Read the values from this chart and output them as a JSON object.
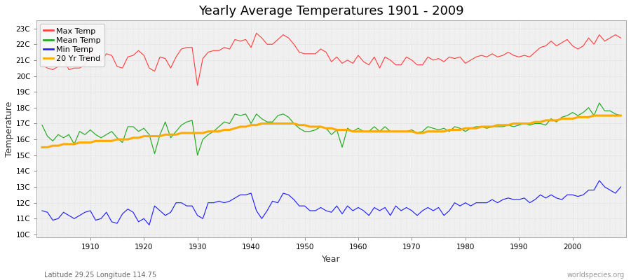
{
  "title": "Yearly Average Temperatures 1901 - 2009",
  "xlabel": "Year",
  "ylabel": "Temperature",
  "x_start": 1901,
  "x_end": 2009,
  "yticks": [
    10,
    11,
    12,
    13,
    14,
    15,
    16,
    17,
    18,
    19,
    20,
    21,
    22,
    23
  ],
  "ytick_labels": [
    "10C",
    "11C",
    "12C",
    "13C",
    "14C",
    "15C",
    "16C",
    "17C",
    "18C",
    "19C",
    "20C",
    "21C",
    "22C",
    "23C"
  ],
  "xticks": [
    1910,
    1920,
    1930,
    1940,
    1950,
    1960,
    1970,
    1980,
    1990,
    2000
  ],
  "ylim": [
    9.8,
    23.5
  ],
  "xlim_start": 1900,
  "xlim_end": 2010,
  "fig_bg_color": "#ffffff",
  "plot_bg_color": "#f0f0f0",
  "grid_color": "#d8d8d8",
  "max_color": "#ff4444",
  "mean_color": "#22aa22",
  "min_color": "#2222ff",
  "trend_color": "#ffaa00",
  "legend_labels": [
    "Max Temp",
    "Mean Temp",
    "Min Temp",
    "20 Yr Trend"
  ],
  "bottom_left_text": "Latitude 29.25 Longitude 114.75",
  "bottom_right_text": "worldspecies.org",
  "max_temp": [
    20.7,
    20.5,
    20.4,
    20.6,
    21.1,
    20.4,
    20.5,
    20.5,
    20.7,
    21.5,
    21.3,
    20.9,
    21.4,
    21.3,
    20.6,
    20.5,
    21.2,
    21.3,
    21.6,
    21.3,
    20.5,
    20.3,
    21.2,
    21.1,
    20.5,
    21.2,
    21.7,
    21.8,
    21.8,
    19.4,
    21.1,
    21.5,
    21.6,
    21.6,
    21.8,
    21.7,
    22.3,
    22.2,
    22.3,
    21.8,
    22.7,
    22.4,
    22.0,
    22.0,
    22.3,
    22.6,
    22.4,
    22.0,
    21.5,
    21.4,
    21.4,
    21.4,
    21.7,
    21.5,
    20.9,
    21.2,
    20.8,
    21.0,
    20.8,
    21.3,
    20.9,
    20.7,
    21.2,
    20.5,
    21.2,
    21.0,
    20.7,
    20.7,
    21.2,
    21.0,
    20.7,
    20.7,
    21.2,
    21.0,
    21.1,
    20.9,
    21.2,
    21.1,
    21.2,
    20.8,
    21.0,
    21.2,
    21.3,
    21.2,
    21.4,
    21.2,
    21.3,
    21.5,
    21.3,
    21.2,
    21.3,
    21.2,
    21.5,
    21.8,
    21.9,
    22.2,
    21.9,
    22.1,
    22.3,
    21.9,
    21.7,
    21.9,
    22.4,
    22.0,
    22.6,
    22.2,
    22.4,
    22.6,
    22.4
  ],
  "mean_temp": [
    16.9,
    16.2,
    15.9,
    16.3,
    16.1,
    16.3,
    15.7,
    16.5,
    16.3,
    16.6,
    16.3,
    16.1,
    16.3,
    16.5,
    16.1,
    15.8,
    16.8,
    16.8,
    16.5,
    16.7,
    16.3,
    15.1,
    16.3,
    17.1,
    16.1,
    16.5,
    16.9,
    17.1,
    17.2,
    15.0,
    16.0,
    16.3,
    16.5,
    16.8,
    17.1,
    17.0,
    17.6,
    17.5,
    17.6,
    17.0,
    17.6,
    17.3,
    17.1,
    17.1,
    17.5,
    17.6,
    17.4,
    17.0,
    16.7,
    16.5,
    16.5,
    16.6,
    16.8,
    16.7,
    16.3,
    16.6,
    15.5,
    16.7,
    16.5,
    16.7,
    16.5,
    16.5,
    16.8,
    16.5,
    16.8,
    16.5,
    16.5,
    16.5,
    16.5,
    16.6,
    16.4,
    16.5,
    16.8,
    16.7,
    16.6,
    16.7,
    16.5,
    16.8,
    16.7,
    16.5,
    16.7,
    16.8,
    16.8,
    16.7,
    16.8,
    16.8,
    16.8,
    16.9,
    16.8,
    16.9,
    17.0,
    16.9,
    17.0,
    17.0,
    16.9,
    17.3,
    17.1,
    17.4,
    17.5,
    17.7,
    17.5,
    17.7,
    18.0,
    17.5,
    18.3,
    17.8,
    17.8,
    17.6,
    17.5
  ],
  "min_temp": [
    11.5,
    11.4,
    10.9,
    11.0,
    11.4,
    11.2,
    11.0,
    11.2,
    11.4,
    11.5,
    10.9,
    11.0,
    11.4,
    10.8,
    10.7,
    11.3,
    11.6,
    11.4,
    10.8,
    11.0,
    10.6,
    11.8,
    11.5,
    11.2,
    11.4,
    12.0,
    12.0,
    11.8,
    11.8,
    11.2,
    11.0,
    12.0,
    12.0,
    12.1,
    12.0,
    12.1,
    12.3,
    12.5,
    12.5,
    12.6,
    11.5,
    11.0,
    11.5,
    12.1,
    12.0,
    12.6,
    12.5,
    12.2,
    11.8,
    11.8,
    11.5,
    11.5,
    11.7,
    11.5,
    11.4,
    11.8,
    11.3,
    11.8,
    11.5,
    11.7,
    11.5,
    11.2,
    11.7,
    11.5,
    11.7,
    11.2,
    11.8,
    11.5,
    11.7,
    11.5,
    11.2,
    11.5,
    11.7,
    11.5,
    11.7,
    11.2,
    11.5,
    12.0,
    11.8,
    12.0,
    11.8,
    12.0,
    12.0,
    12.0,
    12.2,
    12.0,
    12.2,
    12.3,
    12.2,
    12.2,
    12.3,
    12.0,
    12.2,
    12.5,
    12.3,
    12.5,
    12.3,
    12.2,
    12.5,
    12.5,
    12.4,
    12.5,
    12.8,
    12.8,
    13.4,
    13.0,
    12.8,
    12.6,
    13.0
  ],
  "trend_temp": [
    15.5,
    15.5,
    15.6,
    15.6,
    15.7,
    15.7,
    15.7,
    15.8,
    15.8,
    15.8,
    15.9,
    15.9,
    15.9,
    15.9,
    16.0,
    16.0,
    16.0,
    16.1,
    16.1,
    16.2,
    16.2,
    16.2,
    16.2,
    16.3,
    16.3,
    16.3,
    16.4,
    16.4,
    16.4,
    16.4,
    16.4,
    16.5,
    16.5,
    16.5,
    16.6,
    16.6,
    16.7,
    16.8,
    16.8,
    16.9,
    16.9,
    17.0,
    17.0,
    17.0,
    17.0,
    17.0,
    17.0,
    17.0,
    16.9,
    16.9,
    16.8,
    16.8,
    16.8,
    16.7,
    16.7,
    16.6,
    16.6,
    16.6,
    16.5,
    16.5,
    16.5,
    16.5,
    16.5,
    16.5,
    16.5,
    16.5,
    16.5,
    16.5,
    16.5,
    16.5,
    16.4,
    16.4,
    16.5,
    16.5,
    16.5,
    16.5,
    16.6,
    16.6,
    16.6,
    16.7,
    16.7,
    16.7,
    16.8,
    16.8,
    16.8,
    16.9,
    16.9,
    16.9,
    17.0,
    17.0,
    17.0,
    17.0,
    17.1,
    17.1,
    17.2,
    17.2,
    17.2,
    17.3,
    17.3,
    17.3,
    17.4,
    17.4,
    17.4,
    17.5,
    17.5,
    17.5,
    17.5,
    17.5,
    17.5
  ]
}
